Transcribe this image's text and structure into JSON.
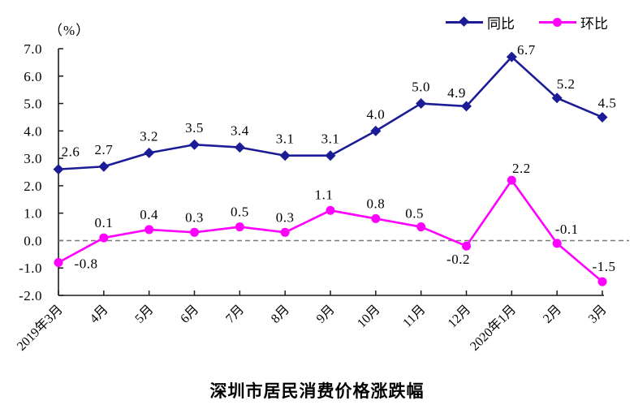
{
  "chart_data": {
    "type": "line",
    "title": "深圳市居民消费价格涨跌幅",
    "ylabel": "（%）",
    "xlabel": "",
    "categories": [
      "2019年3月",
      "4月",
      "5月",
      "6月",
      "7月",
      "8月",
      "9月",
      "10月",
      "11月",
      "12月",
      "2020年1月",
      "2月",
      "3月"
    ],
    "ylim": [
      -2.0,
      7.0
    ],
    "ytick_step": 1.0,
    "y_tick_labels": [
      "7.0",
      "6.0",
      "5.0",
      "4.0",
      "3.0",
      "2.0",
      "1.0",
      "0.0",
      "-1.0",
      "-2.0"
    ],
    "grid": false,
    "zero_line_style": "dashed",
    "legend_position": "top-right",
    "series": [
      {
        "name": "同比",
        "color": "#1c1c96",
        "marker": "diamond",
        "values": [
          2.6,
          2.7,
          3.2,
          3.5,
          3.4,
          3.1,
          3.1,
          4.0,
          5.0,
          4.9,
          6.7,
          5.2,
          4.5
        ],
        "label_default_offset": [
          0,
          -15
        ],
        "label_offsets": {
          "0": [
            15,
            -16
          ],
          "9": [
            -12,
            -11
          ],
          "10": [
            18,
            -3
          ],
          "11": [
            11,
            -12
          ],
          "12": [
            6,
            -12
          ]
        }
      },
      {
        "name": "环比",
        "color": "#ff00ff",
        "marker": "circle",
        "values": [
          -0.8,
          0.1,
          0.4,
          0.3,
          0.5,
          0.3,
          1.1,
          0.8,
          0.5,
          -0.2,
          2.2,
          -0.1,
          -1.5
        ],
        "label_default_offset": [
          0,
          -13
        ],
        "label_offsets": {
          "0": [
            34,
            7
          ],
          "6": [
            -8,
            -14
          ],
          "8": [
            -8,
            -11
          ],
          "9": [
            -10,
            22
          ],
          "10": [
            12,
            -9
          ],
          "11": [
            12,
            -12
          ],
          "12": [
            2,
            -13
          ]
        }
      }
    ]
  }
}
